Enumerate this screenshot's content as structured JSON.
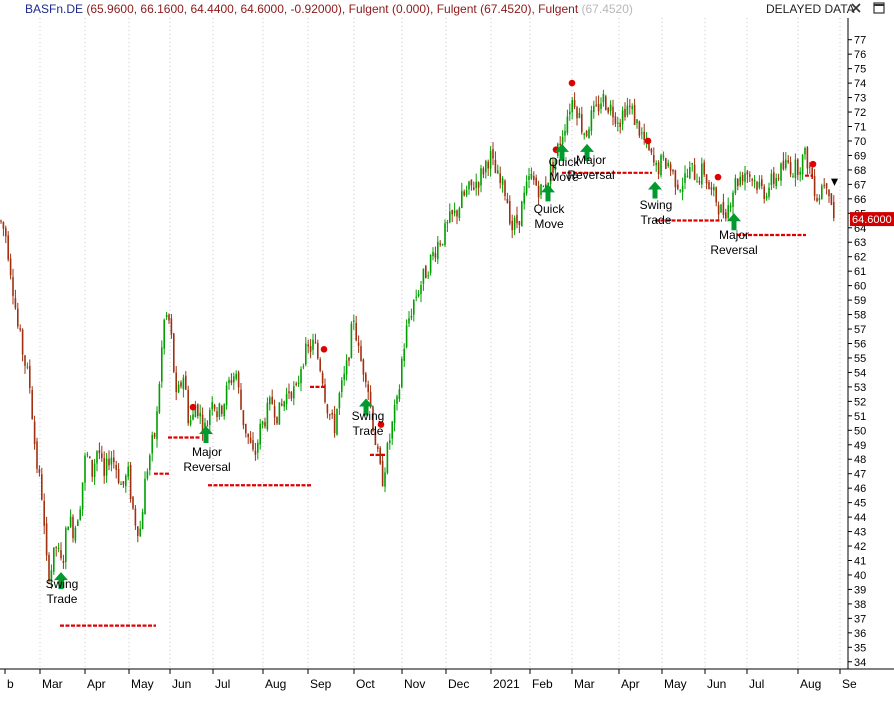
{
  "header": {
    "symbol": "BASFn.DE",
    "ohlc": "(65.9600, 66.1600, 64.4400, 64.6000, -0.92000)",
    "ind1_name": "Fulgent",
    "ind1_value": "(0.000)",
    "ind2_name": "Fulgent",
    "ind2_value": "(67.4520)",
    "ind3_name": "Fulgent",
    "ind3_value": "(67.4520)",
    "delayed": "DELAYED DATA",
    "colors": {
      "symbol": "#1c2a8c",
      "ohlc": "#8b1a1a",
      "ind1": "#8b1a1a",
      "ind2": "#8b1a1a",
      "ind3": "#c0c0c0",
      "up": "#00a000",
      "down": "#a03010",
      "signal": "#e00000",
      "arrow": "#009a2e"
    }
  },
  "chart_data": {
    "type": "candlestick",
    "ylim": [
      33.5,
      78.5
    ],
    "y_ticks": [
      "34",
      "35",
      "36",
      "37",
      "38",
      "39",
      "40",
      "41",
      "42",
      "43",
      "44",
      "45",
      "46",
      "47",
      "48",
      "49",
      "50",
      "51",
      "52",
      "53",
      "54",
      "55",
      "56",
      "57",
      "58",
      "59",
      "60",
      "61",
      "62",
      "63",
      "64",
      "65",
      "66",
      "67",
      "68",
      "69",
      "70",
      "71",
      "72",
      "73",
      "74",
      "75",
      "76",
      "77"
    ],
    "x_labels": [
      "b",
      "Mar",
      "Apr",
      "May",
      "Jun",
      "Jul",
      "Aug",
      "Sep",
      "Oct",
      "Nov",
      "Dec",
      "2021",
      "Feb",
      "Mar",
      "Apr",
      "May",
      "Jun",
      "Jul",
      "Aug",
      "Se"
    ],
    "last_price": "64.6000",
    "price_anchors": [
      [
        0,
        64.5
      ],
      [
        6,
        63.5
      ],
      [
        12,
        60.5
      ],
      [
        18,
        57
      ],
      [
        24,
        55
      ],
      [
        30,
        53
      ],
      [
        36,
        48
      ],
      [
        42,
        45.5
      ],
      [
        46,
        41
      ],
      [
        50,
        40
      ],
      [
        56,
        42
      ],
      [
        62,
        40.5
      ],
      [
        68,
        44
      ],
      [
        74,
        43
      ],
      [
        80,
        45
      ],
      [
        86,
        48.5
      ],
      [
        92,
        47
      ],
      [
        98,
        49
      ],
      [
        104,
        46.5
      ],
      [
        110,
        48.5
      ],
      [
        116,
        47.5
      ],
      [
        122,
        46
      ],
      [
        128,
        47
      ],
      [
        134,
        44
      ],
      [
        140,
        43
      ],
      [
        146,
        47
      ],
      [
        152,
        49
      ],
      [
        156,
        50
      ],
      [
        160,
        54
      ],
      [
        164,
        57.5
      ],
      [
        168,
        58
      ],
      [
        172,
        56
      ],
      [
        176,
        52
      ],
      [
        180,
        53
      ],
      [
        184,
        54
      ],
      [
        188,
        51
      ],
      [
        192,
        50.5
      ],
      [
        196,
        52
      ],
      [
        200,
        51
      ],
      [
        206,
        50
      ],
      [
        212,
        52.5
      ],
      [
        218,
        51
      ],
      [
        224,
        52
      ],
      [
        230,
        53.5
      ],
      [
        236,
        54
      ],
      [
        242,
        51
      ],
      [
        248,
        49.5
      ],
      [
        254,
        48
      ],
      [
        260,
        50
      ],
      [
        266,
        51
      ],
      [
        272,
        52
      ],
      [
        278,
        51
      ],
      [
        284,
        52
      ],
      [
        290,
        53
      ],
      [
        296,
        52.5
      ],
      [
        302,
        55
      ],
      [
        308,
        55.5
      ],
      [
        314,
        56
      ],
      [
        318,
        55
      ],
      [
        322,
        54
      ],
      [
        326,
        52
      ],
      [
        330,
        51
      ],
      [
        334,
        50
      ],
      [
        338,
        52
      ],
      [
        342,
        53
      ],
      [
        346,
        54
      ],
      [
        350,
        56
      ],
      [
        354,
        58
      ],
      [
        358,
        55.5
      ],
      [
        362,
        54.5
      ],
      [
        366,
        54
      ],
      [
        370,
        52
      ],
      [
        374,
        50
      ],
      [
        378,
        48
      ],
      [
        382,
        46.5
      ],
      [
        386,
        48
      ],
      [
        390,
        49.5
      ],
      [
        394,
        51
      ],
      [
        398,
        52
      ],
      [
        402,
        55
      ],
      [
        408,
        57.5
      ],
      [
        414,
        59
      ],
      [
        420,
        60
      ],
      [
        426,
        61
      ],
      [
        432,
        62
      ],
      [
        438,
        63
      ],
      [
        444,
        63.5
      ],
      [
        450,
        64.5
      ],
      [
        456,
        65
      ],
      [
        462,
        66
      ],
      [
        468,
        66.5
      ],
      [
        474,
        67
      ],
      [
        480,
        67.5
      ],
      [
        486,
        68.5
      ],
      [
        490,
        69
      ],
      [
        494,
        68
      ],
      [
        500,
        67
      ],
      [
        506,
        66.5
      ],
      [
        512,
        64
      ],
      [
        518,
        64.5
      ],
      [
        524,
        66
      ],
      [
        530,
        67.5
      ],
      [
        536,
        67
      ],
      [
        542,
        66.5
      ],
      [
        548,
        67.5
      ],
      [
        554,
        68.5
      ],
      [
        558,
        69.5
      ],
      [
        562,
        70.5
      ],
      [
        566,
        71.5
      ],
      [
        570,
        72.5
      ],
      [
        574,
        73
      ],
      [
        578,
        72
      ],
      [
        582,
        71
      ],
      [
        586,
        70.5
      ],
      [
        590,
        71.5
      ],
      [
        596,
        72
      ],
      [
        602,
        73
      ],
      [
        608,
        72.5
      ],
      [
        614,
        72
      ],
      [
        620,
        71.5
      ],
      [
        626,
        72.5
      ],
      [
        632,
        72
      ],
      [
        638,
        71
      ],
      [
        644,
        70
      ],
      [
        650,
        69
      ],
      [
        656,
        68
      ],
      [
        662,
        68.5
      ],
      [
        668,
        68.5
      ],
      [
        674,
        67.5
      ],
      [
        680,
        67
      ],
      [
        686,
        67.5
      ],
      [
        692,
        68
      ],
      [
        698,
        67.5
      ],
      [
        704,
        68
      ],
      [
        710,
        66.5
      ],
      [
        716,
        66
      ],
      [
        722,
        65
      ],
      [
        728,
        65.5
      ],
      [
        734,
        67
      ],
      [
        740,
        67.5
      ],
      [
        746,
        68
      ],
      [
        752,
        67.5
      ],
      [
        758,
        67
      ],
      [
        764,
        66.5
      ],
      [
        770,
        67
      ],
      [
        776,
        67.5
      ],
      [
        782,
        68
      ],
      [
        788,
        68.5
      ],
      [
        794,
        68
      ],
      [
        800,
        68.5
      ],
      [
        806,
        69
      ],
      [
        810,
        68
      ],
      [
        814,
        67
      ],
      [
        818,
        66
      ],
      [
        822,
        67
      ],
      [
        826,
        67.5
      ],
      [
        830,
        66.5
      ],
      [
        834,
        64.6
      ]
    ],
    "support_lines": [
      {
        "x0": 60,
        "x1": 156,
        "y": 36.5
      },
      {
        "x0": 154,
        "x1": 170,
        "y": 47
      },
      {
        "x0": 168,
        "x1": 200,
        "y": 49.5
      },
      {
        "x0": 208,
        "x1": 312,
        "y": 46.2
      },
      {
        "x0": 310,
        "x1": 326,
        "y": 53
      },
      {
        "x0": 370,
        "x1": 386,
        "y": 48.3
      },
      {
        "x0": 562,
        "x1": 652,
        "y": 67.8
      },
      {
        "x0": 655,
        "x1": 722,
        "y": 64.5
      },
      {
        "x0": 737,
        "x1": 806,
        "y": 63.5
      },
      {
        "x0": 805,
        "x1": 813,
        "y": 67.6
      }
    ],
    "signal_dots": [
      {
        "x": 193,
        "y": 51.6
      },
      {
        "x": 324,
        "y": 55.6
      },
      {
        "x": 381,
        "y": 50.4
      },
      {
        "x": 556,
        "y": 69.4
      },
      {
        "x": 572,
        "y": 74.0
      },
      {
        "x": 648,
        "y": 70.0
      },
      {
        "x": 718,
        "y": 67.5
      },
      {
        "x": 813,
        "y": 68.4
      }
    ],
    "arrows": [
      {
        "x": 61,
        "y": 40.2
      },
      {
        "x": 206,
        "y": 50.3
      },
      {
        "x": 366,
        "y": 52.2
      },
      {
        "x": 548,
        "y": 67.0
      },
      {
        "x": 562,
        "y": 69.8
      },
      {
        "x": 587,
        "y": 69.8
      },
      {
        "x": 655,
        "y": 67.2
      },
      {
        "x": 734,
        "y": 65.0
      }
    ],
    "annotations": [
      {
        "x": 62,
        "y": 588,
        "lines": [
          "Swing",
          "Trade"
        ]
      },
      {
        "x": 207,
        "y": 456,
        "lines": [
          "Major",
          "Reversal"
        ]
      },
      {
        "x": 368,
        "y": 420,
        "lines": [
          "Swing",
          "Trade"
        ]
      },
      {
        "x": 549,
        "y": 213,
        "lines": [
          "Quick",
          "Move"
        ]
      },
      {
        "x": 564,
        "y": 166,
        "lines": [
          "Quick",
          "Move"
        ]
      },
      {
        "x": 591,
        "y": 164,
        "lines": [
          "Major",
          "Reversal"
        ]
      },
      {
        "x": 656,
        "y": 209,
        "lines": [
          "Swing",
          "Trade"
        ]
      },
      {
        "x": 734,
        "y": 239,
        "lines": [
          "Major",
          "Reversal"
        ]
      }
    ]
  }
}
